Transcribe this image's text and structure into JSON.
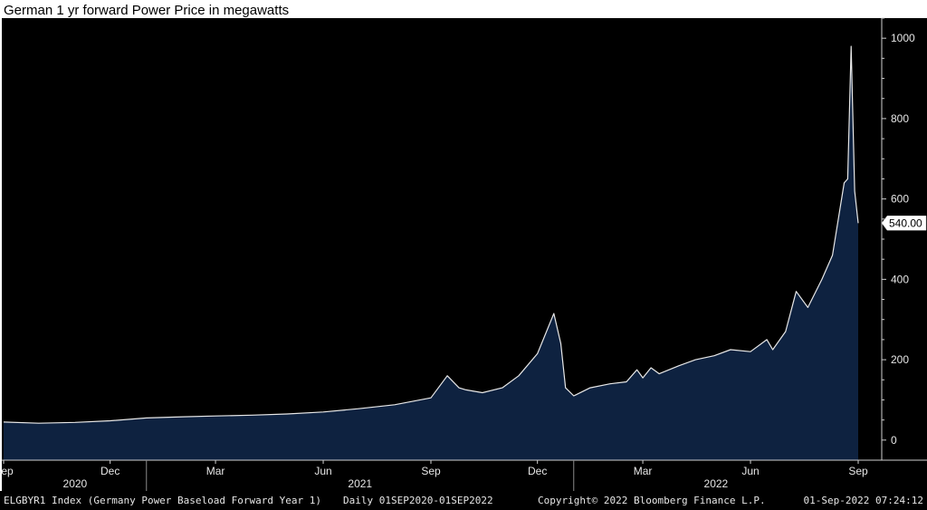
{
  "title": "German 1 yr forward Power Price in megawatts",
  "footer": {
    "index": "ELGBYR1 Index (Germany Power Baseload Forward Year 1)",
    "range": "Daily 01SEP2020-01SEP2022",
    "copyright": "Copyright© 2022 Bloomberg Finance L.P.",
    "timestamp": "01-Sep-2022 07:24:12"
  },
  "colors": {
    "background": "#000000",
    "area_fill": "#0e2240",
    "line": "#e8e8e8",
    "axis_text": "#e6e6e6"
  },
  "chart_data": {
    "type": "area",
    "title": "German 1 yr forward Power Price in megawatts",
    "x_start": "2020-09-01",
    "x_end": "2022-09-01",
    "x": [
      "2020-09-01",
      "2020-10-01",
      "2020-11-01",
      "2020-12-01",
      "2021-01-01",
      "2021-02-01",
      "2021-03-01",
      "2021-04-01",
      "2021-05-01",
      "2021-06-01",
      "2021-07-01",
      "2021-08-01",
      "2021-09-01",
      "2021-09-15",
      "2021-09-25",
      "2021-10-01",
      "2021-10-15",
      "2021-11-01",
      "2021-11-15",
      "2021-12-01",
      "2021-12-15",
      "2021-12-21",
      "2021-12-25",
      "2022-01-01",
      "2022-01-15",
      "2022-02-01",
      "2022-02-15",
      "2022-02-24",
      "2022-03-01",
      "2022-03-08",
      "2022-03-15",
      "2022-04-01",
      "2022-04-15",
      "2022-05-01",
      "2022-05-15",
      "2022-06-01",
      "2022-06-15",
      "2022-06-20",
      "2022-07-01",
      "2022-07-10",
      "2022-07-20",
      "2022-08-01",
      "2022-08-10",
      "2022-08-20",
      "2022-08-23",
      "2022-08-26",
      "2022-08-29",
      "2022-09-01"
    ],
    "values": [
      45,
      42,
      44,
      48,
      55,
      58,
      60,
      62,
      65,
      70,
      78,
      88,
      105,
      160,
      130,
      125,
      118,
      130,
      160,
      215,
      315,
      240,
      130,
      110,
      130,
      140,
      145,
      175,
      155,
      180,
      165,
      185,
      200,
      210,
      225,
      220,
      250,
      225,
      270,
      370,
      330,
      400,
      460,
      640,
      650,
      980,
      620,
      540
    ],
    "y_ticks": [
      0,
      200,
      400,
      600,
      800,
      1000
    ],
    "ylim": [
      -50,
      1050
    ],
    "x_tick_labels": [
      "Sep",
      "Dec",
      "Mar",
      "Jun",
      "Sep",
      "Dec",
      "Mar",
      "Jun",
      "Sep"
    ],
    "x_tick_dates": [
      "2020-09-01",
      "2020-12-01",
      "2021-03-01",
      "2021-06-01",
      "2021-09-01",
      "2021-12-01",
      "2022-03-01",
      "2022-06-01",
      "2022-09-01"
    ],
    "year_labels": [
      "2020",
      "2021",
      "2022"
    ],
    "last_value": "540.00"
  }
}
